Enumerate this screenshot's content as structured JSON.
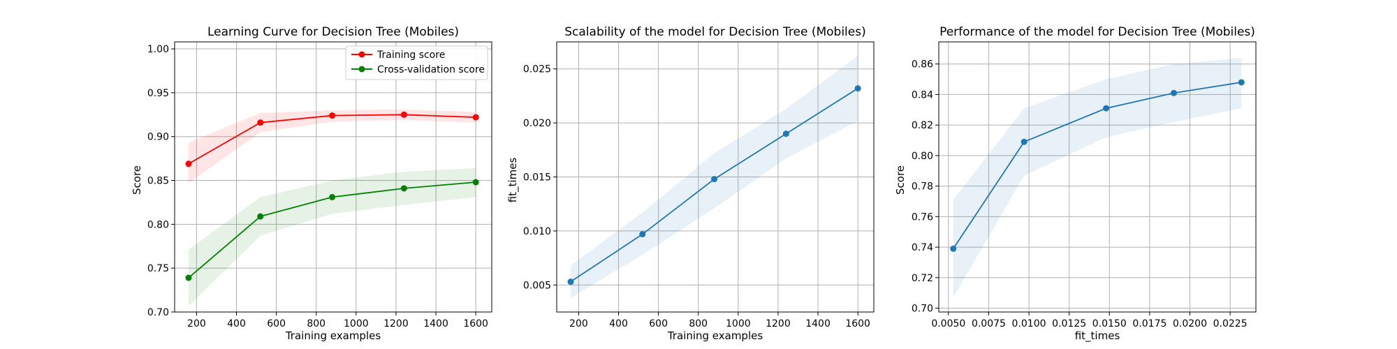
{
  "chart_data": [
    {
      "type": "line",
      "title": "Learning Curve for Decision Tree (Mobiles)",
      "xlabel": "Training examples",
      "ylabel": "Score",
      "xlim": [
        90,
        1680
      ],
      "ylim": [
        0.7,
        1.008
      ],
      "xticks": [
        200,
        400,
        600,
        800,
        1000,
        1200,
        1400,
        1600
      ],
      "yticks": [
        0.7,
        0.75,
        0.8,
        0.85,
        0.9,
        0.95,
        1.0
      ],
      "xtick_labels": [
        "200",
        "400",
        "600",
        "800",
        "1000",
        "1200",
        "1400",
        "1600"
      ],
      "ytick_labels": [
        "0.70",
        "0.75",
        "0.80",
        "0.85",
        "0.90",
        "0.95",
        "1.00"
      ],
      "grid": true,
      "legend_position": "top-right",
      "series": [
        {
          "name": "Training score",
          "color": "#ff0000",
          "fill_color": "#ff0000",
          "x": [
            160,
            520,
            880,
            1240,
            1600
          ],
          "y": [
            0.869,
            0.916,
            0.924,
            0.925,
            0.922
          ],
          "lower": [
            0.847,
            0.905,
            0.917,
            0.919,
            0.916
          ],
          "upper": [
            0.893,
            0.927,
            0.93,
            0.931,
            0.928
          ]
        },
        {
          "name": "Cross-validation score",
          "color": "#008000",
          "fill_color": "#008000",
          "x": [
            160,
            520,
            880,
            1240,
            1600
          ],
          "y": [
            0.739,
            0.809,
            0.831,
            0.841,
            0.848
          ],
          "lower": [
            0.707,
            0.787,
            0.812,
            0.822,
            0.831
          ],
          "upper": [
            0.771,
            0.831,
            0.85,
            0.86,
            0.864
          ]
        }
      ]
    },
    {
      "type": "line",
      "title": "Scalability of the model for Decision Tree (Mobiles)",
      "xlabel": "Training examples",
      "ylabel": "fit_times",
      "xlim": [
        90,
        1680
      ],
      "ylim": [
        0.0025,
        0.0275
      ],
      "xticks": [
        200,
        400,
        600,
        800,
        1000,
        1200,
        1400,
        1600
      ],
      "yticks": [
        0.005,
        0.01,
        0.015,
        0.02,
        0.025
      ],
      "xtick_labels": [
        "200",
        "400",
        "600",
        "800",
        "1000",
        "1200",
        "1400",
        "1600"
      ],
      "ytick_labels": [
        "0.005",
        "0.010",
        "0.015",
        "0.020",
        "0.025"
      ],
      "grid": true,
      "series": [
        {
          "color": "#1f77b4",
          "fill_color": "#1f77b4",
          "x": [
            160,
            520,
            880,
            1240,
            1600
          ],
          "y": [
            0.0053,
            0.0097,
            0.0148,
            0.019,
            0.0232
          ],
          "lower": [
            0.0038,
            0.0078,
            0.0121,
            0.0167,
            0.0202
          ],
          "upper": [
            0.0068,
            0.0117,
            0.0172,
            0.0213,
            0.0262
          ]
        }
      ]
    },
    {
      "type": "line",
      "title": "Performance of the model for Decision Tree (Mobiles)",
      "xlabel": "fit_times",
      "ylabel": "Score",
      "xlim": [
        0.0044,
        0.0241
      ],
      "ylim": [
        0.6975,
        0.8745
      ],
      "xticks": [
        0.005,
        0.0075,
        0.01,
        0.0125,
        0.015,
        0.0175,
        0.02,
        0.0225
      ],
      "yticks": [
        0.7,
        0.72,
        0.74,
        0.76,
        0.78,
        0.8,
        0.82,
        0.84,
        0.86
      ],
      "xtick_labels": [
        "0.0050",
        "0.0075",
        "0.0100",
        "0.0125",
        "0.0150",
        "0.0175",
        "0.0200",
        "0.0225"
      ],
      "ytick_labels": [
        "0.70",
        "0.72",
        "0.74",
        "0.76",
        "0.78",
        "0.80",
        "0.82",
        "0.84",
        "0.86"
      ],
      "grid": true,
      "series": [
        {
          "color": "#1f77b4",
          "fill_color": "#1f77b4",
          "x": [
            0.0053,
            0.0097,
            0.0148,
            0.019,
            0.0232
          ],
          "y": [
            0.739,
            0.809,
            0.831,
            0.841,
            0.848
          ],
          "lower": [
            0.707,
            0.787,
            0.812,
            0.822,
            0.831
          ],
          "upper": [
            0.771,
            0.831,
            0.85,
            0.86,
            0.864
          ]
        }
      ]
    }
  ]
}
